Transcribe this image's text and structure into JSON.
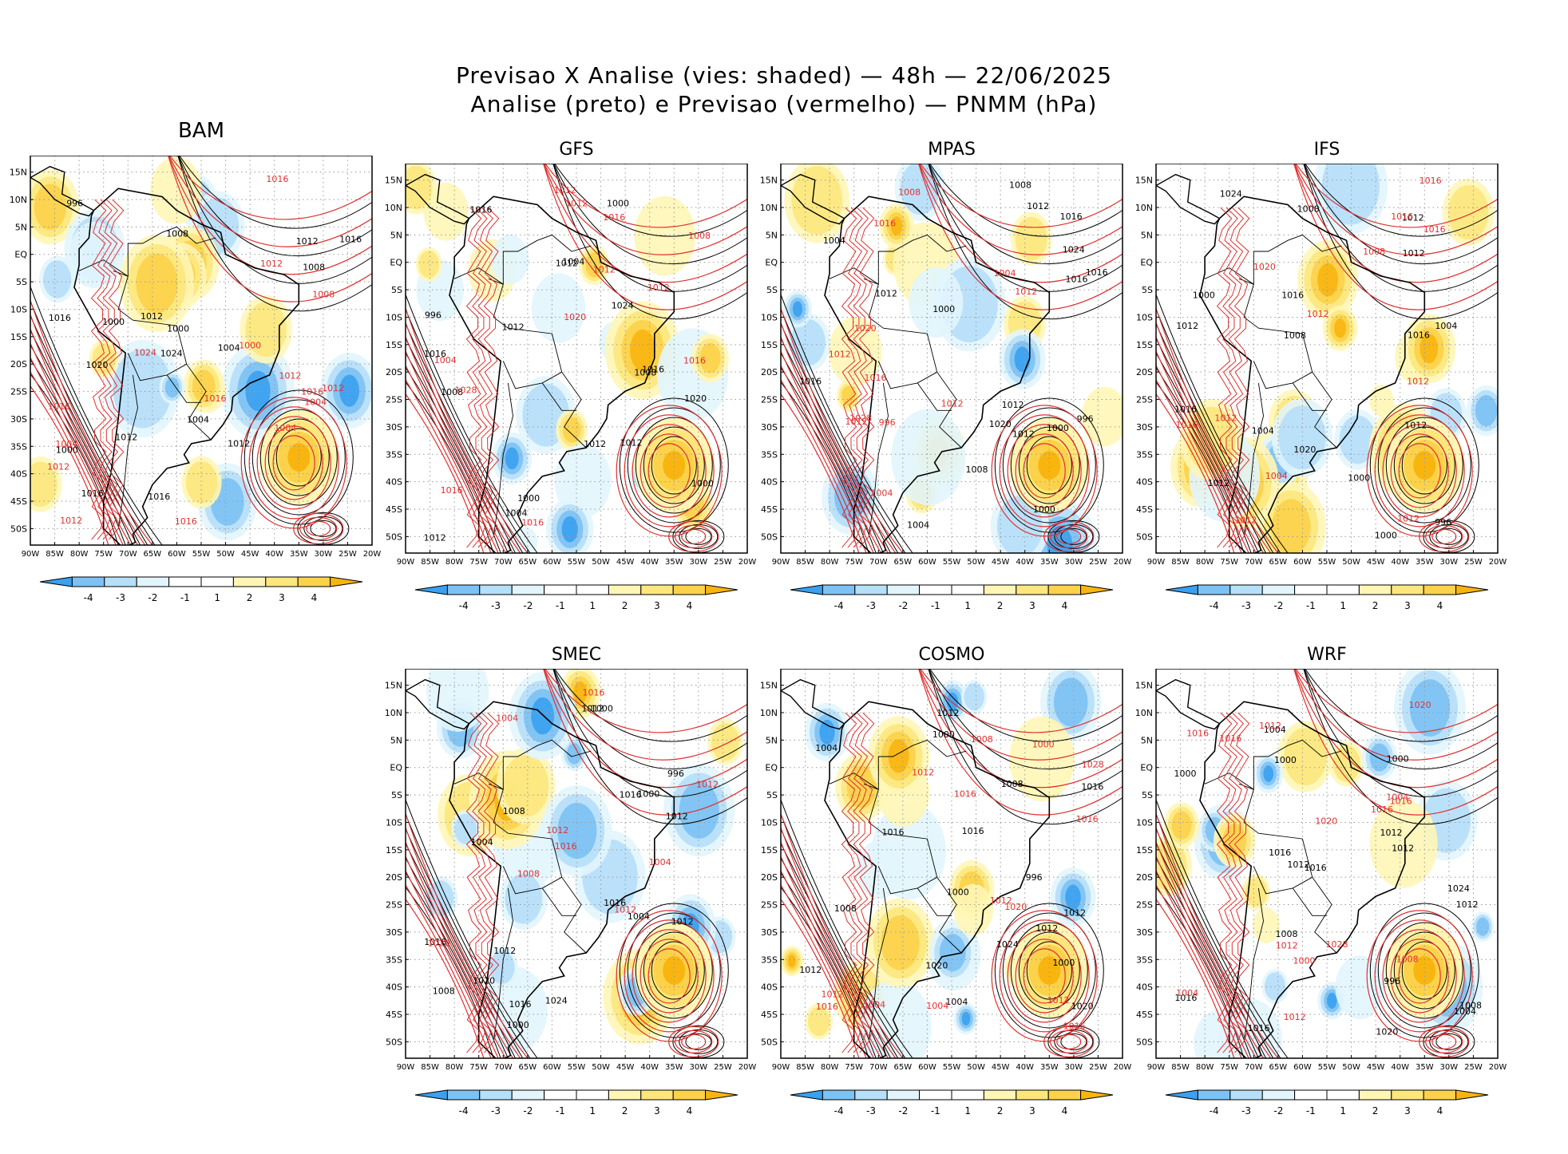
{
  "figure": {
    "title_line1": "Previsao X Analise (vies: shaded) — 48h — 22/06/2025",
    "title_line2": "Analise (preto) e Previsao (vermelho) — PNMM (hPa)"
  },
  "lat_labels": [
    "15N",
    "10N",
    "5N",
    "EQ",
    "5S",
    "10S",
    "15S",
    "20S",
    "25S",
    "30S",
    "35S",
    "40S",
    "45S",
    "50S"
  ],
  "lon_labels": [
    "90W",
    "85W",
    "80W",
    "75W",
    "70W",
    "65W",
    "60W",
    "55W",
    "50W",
    "45W",
    "40W",
    "35W",
    "30W",
    "25W",
    "20W"
  ],
  "colorbar_labels": [
    "-4",
    "-3",
    "-2",
    "-1",
    "1",
    "2",
    "3",
    "4"
  ],
  "colors": {
    "analysis_contour": "#000000",
    "forecast_contour": "#e03030",
    "bias_neg4": "#3aa0ef",
    "bias_neg3": "#7cc2f4",
    "bias_neg2": "#b6dff9",
    "bias_neg1": "#e2f5fd",
    "bias_zero": "#ffffff",
    "bias_pos1": "#fff6b6",
    "bias_pos2": "#fde77c",
    "bias_pos3": "#fcd24a",
    "bias_pos4": "#f9b50f"
  },
  "panels": [
    {
      "name": "BAM",
      "labels_black": [
        "1016",
        "1012",
        "1012",
        "1016",
        "1012",
        "1016",
        "1020",
        "1008",
        "1004",
        "1000",
        "996",
        "1024",
        "1012",
        "1008",
        "1004",
        "1000",
        "1000",
        "1016"
      ],
      "labels_red": [
        "1016",
        "1012",
        "1012",
        "1012",
        "1016",
        "1012",
        "1016",
        "1012",
        "1016",
        "1008",
        "1004",
        "1024",
        "1016",
        "1004",
        "1000",
        "1004"
      ]
    },
    {
      "name": "GFS",
      "labels_black": [
        "1016",
        "1012",
        "1016",
        "1012",
        "1012",
        "1012",
        "1020",
        "1008",
        "1004",
        "1000",
        "996",
        "1024",
        "1012",
        "1008",
        "1004",
        "1000",
        "1000",
        "1016"
      ],
      "labels_red": [
        "1016",
        "1012",
        "1012",
        "1016",
        "1016",
        "1012",
        "1016",
        "1012",
        "1008",
        "1004",
        "1028",
        "1020"
      ]
    },
    {
      "name": "MPAS",
      "labels_black": [
        "1016",
        "1012",
        "1012",
        "1016",
        "1012",
        "1016",
        "1020",
        "1008",
        "1004",
        "1000",
        "996",
        "1024",
        "1012",
        "1008",
        "1004",
        "1000",
        "1000",
        "1016"
      ],
      "labels_red": [
        "1016",
        "1012",
        "1012",
        "1012",
        "1016",
        "1012",
        "1008",
        "1004",
        "996",
        "1028",
        "1020",
        "1004"
      ]
    },
    {
      "name": "IFS",
      "labels_black": [
        "1016",
        "1012",
        "1012",
        "1016",
        "1012",
        "1012",
        "1020",
        "1008",
        "1004",
        "1000",
        "996",
        "1024",
        "1012",
        "1008",
        "1004",
        "1000",
        "1000",
        "1016"
      ],
      "labels_red": [
        "1016",
        "1012",
        "1012",
        "1012",
        "1012",
        "1016",
        "1012",
        "1016",
        "1008",
        "1004",
        "1020",
        "1016"
      ]
    },
    {
      "name": "SMEC",
      "labels_black": [
        "1016",
        "1012",
        "1016",
        "1012",
        "1012",
        "1016",
        "1020",
        "1008",
        "1004",
        "1000",
        "996",
        "1024",
        "1012",
        "1008",
        "1004",
        "1000",
        "1000",
        "1016"
      ],
      "labels_red": [
        "1016",
        "1012",
        "1012",
        "1016",
        "1012",
        "1008",
        "1004",
        "1004",
        "1020"
      ]
    },
    {
      "name": "COSMO",
      "labels_black": [
        "1012",
        "1016",
        "1012",
        "1016",
        "1012",
        "1016",
        "1020",
        "1008",
        "1004",
        "1000",
        "996",
        "1024",
        "1012",
        "1008",
        "1004",
        "1000",
        "1000",
        "1020"
      ],
      "labels_red": [
        "1016",
        "1012",
        "1012",
        "1016",
        "1012",
        "1016",
        "1020",
        "1016",
        "1012",
        "1008",
        "1004",
        "1004",
        "1028",
        "1000"
      ]
    },
    {
      "name": "WRF",
      "labels_black": [
        "1016",
        "1012",
        "1016",
        "1012",
        "1012",
        "1016",
        "1020",
        "1008",
        "1004",
        "1000",
        "996",
        "1024",
        "1012",
        "1008",
        "1004",
        "1000",
        "1000",
        "1016"
      ],
      "labels_red": [
        "1016",
        "1012",
        "1016",
        "1012",
        "1016",
        "1020",
        "1016",
        "1012",
        "1008",
        "1004",
        "1028",
        "1000",
        "1004",
        "1020"
      ]
    }
  ]
}
